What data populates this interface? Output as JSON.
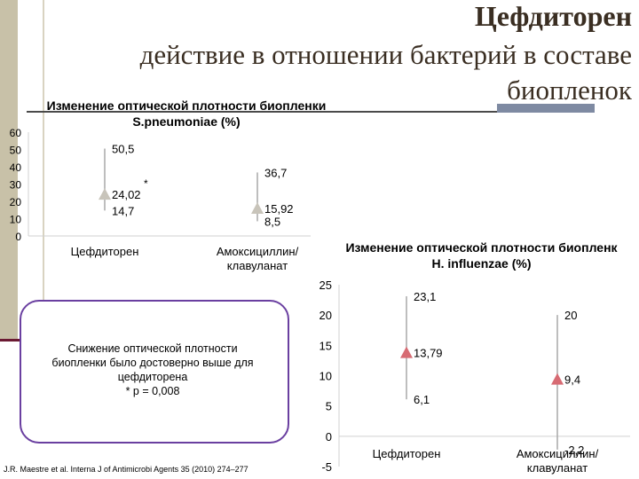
{
  "slide": {
    "title": "Цефдиторен",
    "subtitle_line1": "действие в отношении бактерий в составе",
    "subtitle_line2": "биопленок",
    "callout_lines": [
      "Снижение оптической плотности",
      "биопленки было достоверно  выше для",
      "цефдиторена",
      "* p = 0,008"
    ],
    "reference": "J.R. Maestre et al. Interna J of Antimicrobi Agents 35 (2010) 274–277",
    "colors": {
      "marker_left": "#c8c4ba",
      "marker_right": "#d76b73",
      "line": "#a8a8a8",
      "callout_border": "#6a3fa0"
    }
  },
  "chart_data": [
    {
      "type": "scatter",
      "title_line1": "Изменение оптической плотности биопленки",
      "title_line2": "S.pneumoniae (%)",
      "categories": [
        "Цефдиторен",
        "Амоксициллин/клавуланат"
      ],
      "category_label_lines": [
        [
          "Цефдиторен"
        ],
        [
          "Амоксициллин/",
          "клавуланат"
        ]
      ],
      "series": [
        {
          "center": 24.02,
          "high": 50.5,
          "low": 14.7,
          "center_label": "24,02",
          "high_label": "50,5",
          "low_label": "14,7",
          "annotation": "*"
        },
        {
          "center": 15.92,
          "high": 36.7,
          "low": 8.5,
          "center_label": "15,92",
          "high_label": "36,7",
          "low_label": "8,5",
          "annotation": ""
        }
      ],
      "yticks": [
        "60",
        "50",
        "40",
        "30",
        "20",
        "10",
        "0"
      ],
      "ylim": [
        0,
        60
      ],
      "grid": false
    },
    {
      "type": "scatter",
      "title_line1": "Изменение оптической плотности биопленк",
      "title_line2": "H. influenzae (%)",
      "categories": [
        "Цефдиторен",
        "Амоксициллин/клавуланат"
      ],
      "category_label_lines": [
        [
          "Цефдиторен"
        ],
        [
          "Амоксициллин/",
          "клавуланат"
        ]
      ],
      "series": [
        {
          "center": 13.79,
          "high": 23.1,
          "low": 6.1,
          "center_label": "13,79",
          "high_label": "23,1",
          "low_label": "6,1"
        },
        {
          "center": 9.4,
          "high": 20,
          "low": -2.2,
          "center_label": "9,4",
          "high_label": "20",
          "low_label": "-2,2"
        }
      ],
      "yticks": [
        "25",
        "20",
        "15",
        "10",
        "5",
        "0",
        "-5"
      ],
      "ylim": [
        -5,
        25
      ],
      "grid": false
    }
  ]
}
